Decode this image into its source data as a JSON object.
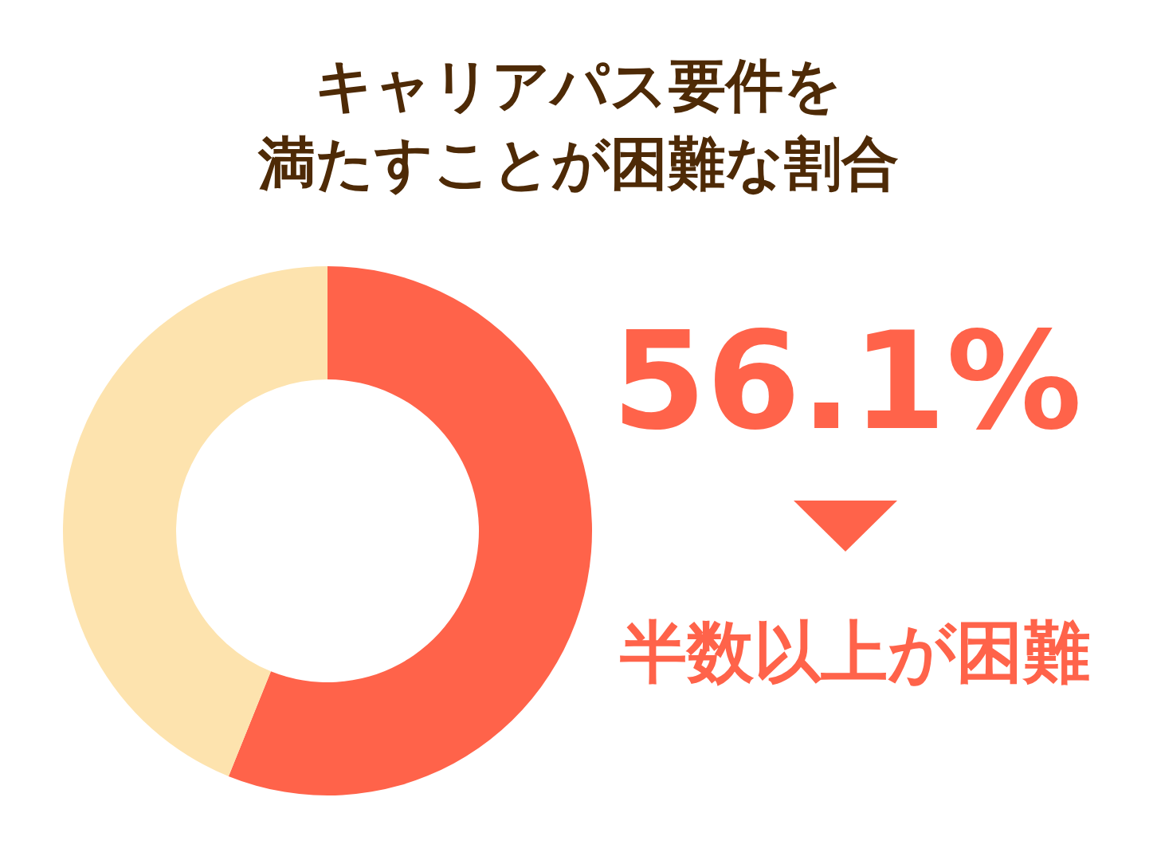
{
  "chart_data": {
    "type": "donut",
    "title": "キャリアパス要件を",
    "subtitle": "満たすことが困難な割合",
    "categories": [
      null,
      null
    ],
    "values": [
      56.1,
      43.9
    ],
    "colors": [
      "#ff634a",
      "#fde3ae"
    ],
    "value_labels": [
      "56.1%",
      null
    ],
    "annotations": [
      "半数以上が困難"
    ]
  }
}
